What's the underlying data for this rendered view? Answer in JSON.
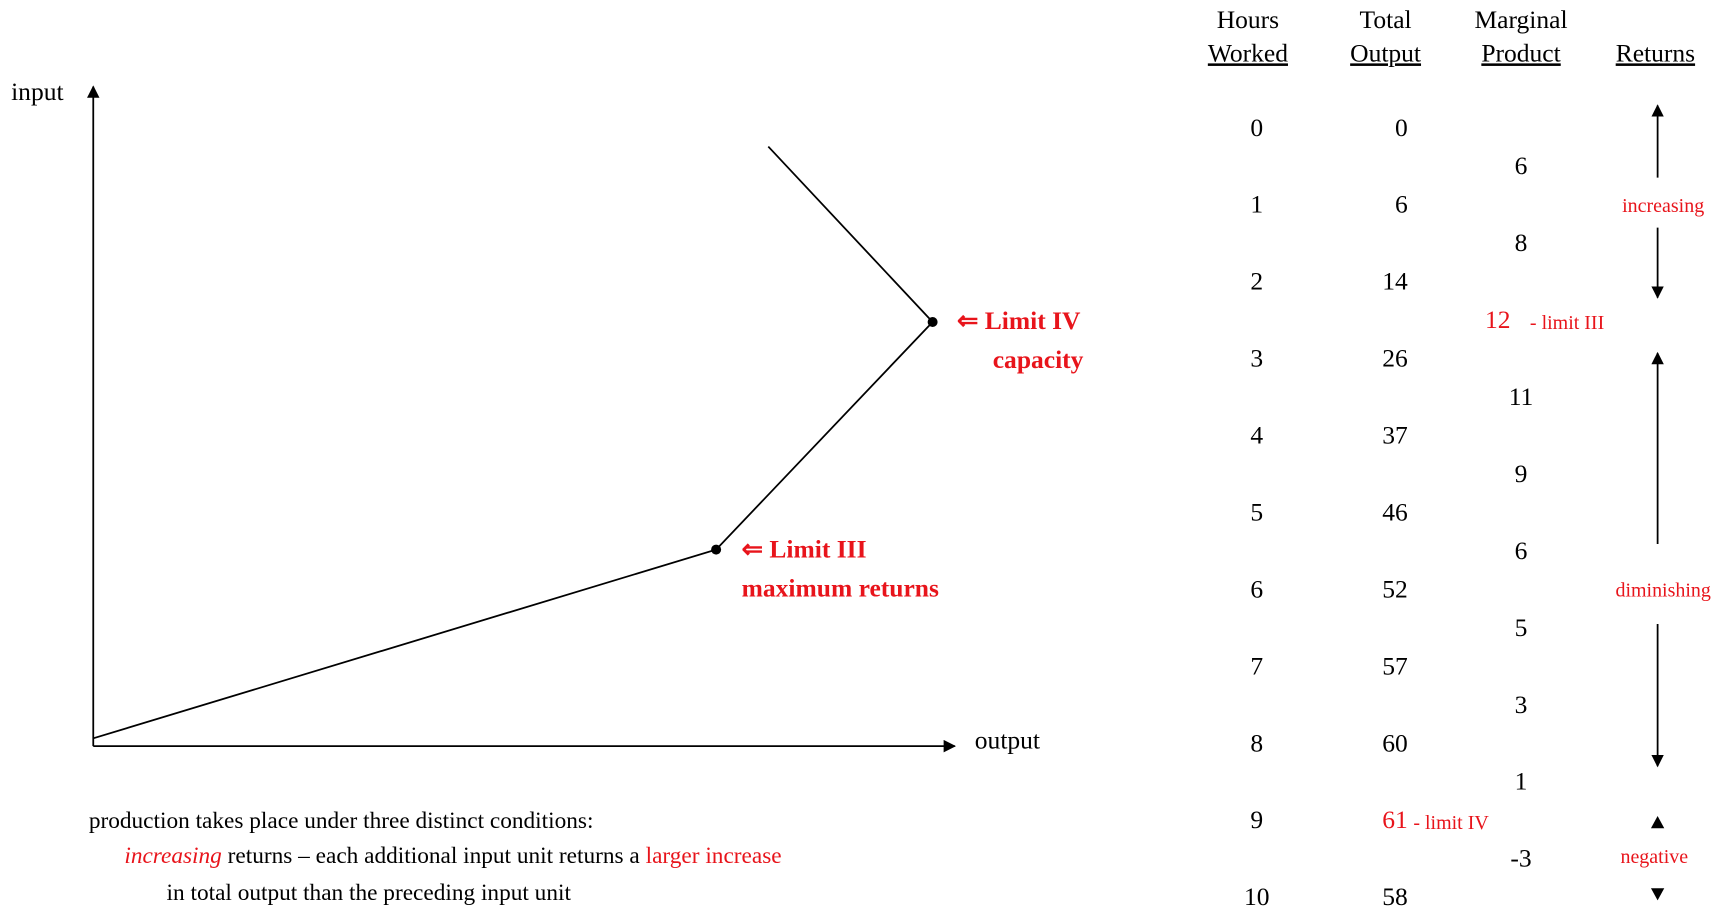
{
  "graph": {
    "y_axis_label": "input",
    "x_axis_label": "output",
    "limit_iv": {
      "title": "⇐ Limit IV",
      "subtitle": "capacity"
    },
    "limit_iii": {
      "title": "⇐  Limit III",
      "subtitle": "maximum returns"
    }
  },
  "table": {
    "headers": [
      {
        "top": "Hours",
        "bottom": "Worked"
      },
      {
        "top": "Total",
        "bottom": "Output"
      },
      {
        "top": "Marginal",
        "bottom": "Product"
      },
      {
        "top": "",
        "bottom": "Returns"
      }
    ],
    "hours": [
      "0",
      "1",
      "2",
      "3",
      "4",
      "5",
      "6",
      "7",
      "8",
      "9",
      "10"
    ],
    "total_output": [
      "0",
      "6",
      "14",
      "26",
      "37",
      "46",
      "52",
      "57",
      "60",
      "61",
      "58"
    ],
    "marginal_product": [
      "6",
      "8",
      "12",
      "11",
      "9",
      "6",
      "5",
      "3",
      "1",
      "-3"
    ],
    "limit_iii_note": "- limit III",
    "limit_iv_note": "- limit IV",
    "returns": {
      "increasing": "increasing",
      "diminishing": "diminishing",
      "negative": "negative"
    }
  },
  "text": {
    "line1": "production takes place under three distinct conditions:",
    "line2": {
      "term": "increasing",
      "middle": " returns – each additional input unit returns a ",
      "highlight": "larger increase"
    },
    "line3": "in total output than the preceding input unit"
  }
}
